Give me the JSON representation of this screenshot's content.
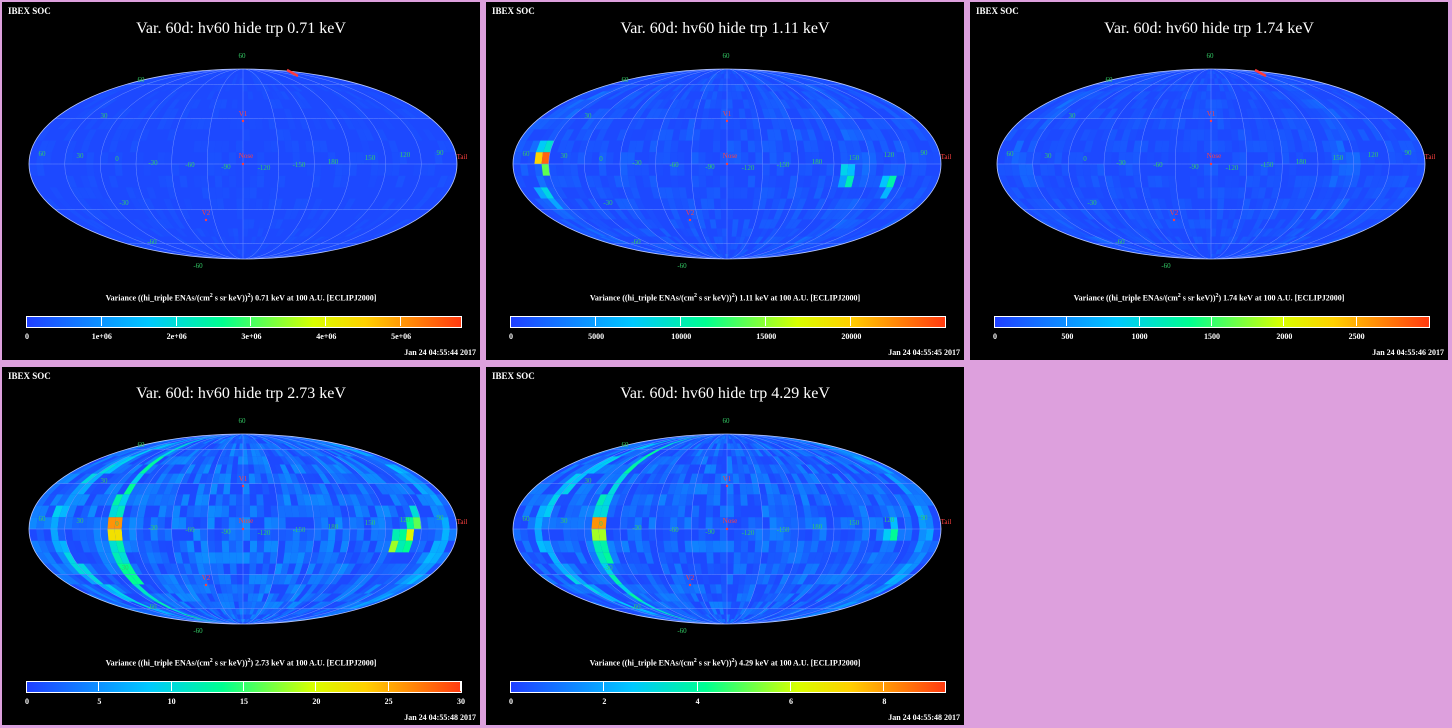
{
  "common": {
    "corner_label": "IBEX SOC",
    "map_labels": {
      "lat_north": "60",
      "lat_upper": "30",
      "lat_lower": "-30",
      "lat_south": "-60",
      "top_pole": "60",
      "bottom_pole": "-60",
      "lon_left": "60",
      "lon_l1": "30",
      "lon_l2": "0",
      "lon_l3": "-30",
      "lon_l4": "-60",
      "lon_c1": "-90",
      "lon_c2": "-120",
      "lon_c3": "-150",
      "lon_c4": "180",
      "lon_r1": "150",
      "lon_r2": "120",
      "lon_r3": "90",
      "v1": "V1",
      "v2": "V2",
      "nose": "Nose",
      "tail": "Tail"
    }
  },
  "panels": [
    {
      "title": "Var. 60d: hv60 hide trp 0.71 keV",
      "unit_pre": "Variance ((hi_triple ENAs/(cm",
      "unit_sup1": "2",
      "unit_mid": " s sr keV))",
      "unit_sup2": "2",
      "unit_post": ") 0.71 keV at 100 A.U. [ECLIPJ2000]",
      "timestamp": "Jan 24 04:55:44 2017",
      "chart_data": {
        "type": "heatmap",
        "colorbar_min": 0,
        "colorbar_max": 5800000,
        "ticks": [
          {
            "v": 0,
            "label": "0"
          },
          {
            "v": 1000000,
            "label": "1e+06"
          },
          {
            "v": 2000000,
            "label": "2e+06"
          },
          {
            "v": 3000000,
            "label": "3e+06"
          },
          {
            "v": 4000000,
            "label": "4e+06"
          },
          {
            "v": 5000000,
            "label": "5e+06"
          }
        ],
        "hotspots": [],
        "stripe": false,
        "tail_streak": true,
        "noise": 0.04
      }
    },
    {
      "title": "Var. 60d: hv60 hide trp 1.11 keV",
      "unit_pre": "Variance ((hi_triple ENAs/(cm",
      "unit_sup1": "2",
      "unit_mid": " s sr keV))",
      "unit_sup2": "2",
      "unit_post": ") 1.11 keV at 100 A.U. [ECLIPJ2000]",
      "timestamp": "Jan 24 04:55:45 2017",
      "chart_data": {
        "type": "heatmap",
        "colorbar_min": 0,
        "colorbar_max": 25500,
        "ticks": [
          {
            "v": 0,
            "label": "0"
          },
          {
            "v": 5000,
            "label": "5000"
          },
          {
            "v": 10000,
            "label": "10000"
          },
          {
            "v": 15000,
            "label": "15000"
          },
          {
            "v": 20000,
            "label": "20000"
          }
        ],
        "hotspots": [
          {
            "lon": -155,
            "lat": 3,
            "level": 1.0
          },
          {
            "lon": -155,
            "lat": 10,
            "level": 0.38
          },
          {
            "lon": -160,
            "lat": -20,
            "level": 0.33
          },
          {
            "lon": 140,
            "lat": -12,
            "level": 0.42
          },
          {
            "lon": 105,
            "lat": -10,
            "level": 0.4
          },
          {
            "lon": 100,
            "lat": -5,
            "level": 0.32
          }
        ],
        "stripe": false,
        "tail_streak": false,
        "noise": 0.07
      }
    },
    {
      "title": "Var. 60d: hv60 hide trp 1.74 keV",
      "unit_pre": "Variance ((hi_triple ENAs/(cm",
      "unit_sup1": "2",
      "unit_mid": " s sr keV))",
      "unit_sup2": "2",
      "unit_post": ") 1.74 keV at 100 A.U. [ECLIPJ2000]",
      "timestamp": "Jan 24 04:55:46 2017",
      "chart_data": {
        "type": "heatmap",
        "colorbar_min": 0,
        "colorbar_max": 3000,
        "ticks": [
          {
            "v": 0,
            "label": "0"
          },
          {
            "v": 500,
            "label": "500"
          },
          {
            "v": 1000,
            "label": "1000"
          },
          {
            "v": 1500,
            "label": "1500"
          },
          {
            "v": 2000,
            "label": "2000"
          },
          {
            "v": 2500,
            "label": "2500"
          }
        ],
        "hotspots": [],
        "stripe": false,
        "tail_streak": true,
        "noise": 0.06
      }
    },
    {
      "title": "Var. 60d: hv60 hide trp 2.73 keV",
      "unit_pre": "Variance ((hi_triple ENAs/(cm",
      "unit_sup1": "2",
      "unit_mid": " s sr keV))",
      "unit_sup2": "2",
      "unit_post": ") 2.73 keV at 100 A.U. [ECLIPJ2000]",
      "timestamp": "Jan 24 04:55:48 2017",
      "chart_data": {
        "type": "heatmap",
        "colorbar_min": 0,
        "colorbar_max": 30,
        "ticks": [
          {
            "v": 0,
            "label": "0"
          },
          {
            "v": 5,
            "label": "5"
          },
          {
            "v": 10,
            "label": "10"
          },
          {
            "v": 15,
            "label": "15"
          },
          {
            "v": 20,
            "label": "20"
          },
          {
            "v": 25,
            "label": "25"
          },
          {
            "v": 30,
            "label": "30"
          }
        ],
        "hotspots": [
          {
            "lon": -108,
            "lat": 3,
            "level": 1.0
          },
          {
            "lon": -108,
            "lat": -3,
            "level": 0.85
          },
          {
            "lon": -108,
            "lat": -30,
            "level": 0.6
          },
          {
            "lon": 140,
            "lat": -5,
            "level": 0.7
          },
          {
            "lon": 130,
            "lat": -10,
            "level": 0.62
          },
          {
            "lon": 145,
            "lat": 5,
            "level": 0.58
          }
        ],
        "stripe": true,
        "tail_streak": false,
        "noise": 0.16
      }
    },
    {
      "title": "Var. 60d: hv60 hide trp 4.29 keV",
      "unit_pre": "Variance ((hi_triple ENAs/(cm",
      "unit_sup1": "2",
      "unit_mid": " s sr keV))",
      "unit_sup2": "2",
      "unit_post": ") 4.29 keV at 100 A.U. [ECLIPJ2000]",
      "timestamp": "Jan 24 04:55:48 2017",
      "chart_data": {
        "type": "heatmap",
        "colorbar_min": 0,
        "colorbar_max": 9.3,
        "ticks": [
          {
            "v": 0,
            "label": "0"
          },
          {
            "v": 2,
            "label": "2"
          },
          {
            "v": 4,
            "label": "4"
          },
          {
            "v": 6,
            "label": "6"
          },
          {
            "v": 8,
            "label": "8"
          }
        ],
        "hotspots": [
          {
            "lon": -108,
            "lat": 3,
            "level": 1.0
          },
          {
            "lon": -108,
            "lat": -3,
            "level": 0.7
          },
          {
            "lon": 140,
            "lat": -3,
            "level": 0.45
          }
        ],
        "stripe": true,
        "tail_streak": false,
        "noise": 0.14
      }
    }
  ]
}
